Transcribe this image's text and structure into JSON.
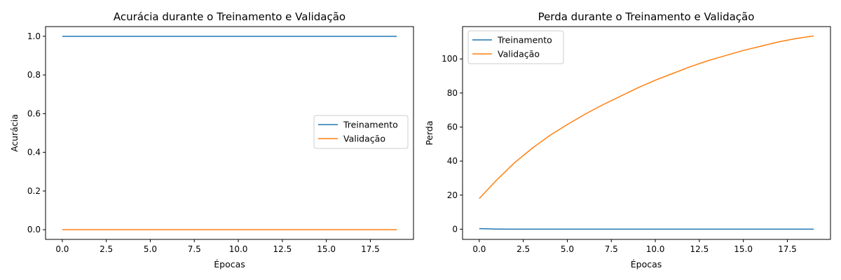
{
  "chart_data": [
    {
      "type": "line",
      "title": "Acurácia durante o Treinamento e Validação",
      "xlabel": "Épocas",
      "ylabel": "Acurácia",
      "xlim": [
        -0.95,
        19.95
      ],
      "ylim": [
        -0.05,
        1.05
      ],
      "xticks": [
        0.0,
        2.5,
        5.0,
        7.5,
        10.0,
        12.5,
        15.0,
        17.5
      ],
      "xtick_labels": [
        "0.0",
        "2.5",
        "5.0",
        "7.5",
        "10.0",
        "12.5",
        "15.0",
        "17.5"
      ],
      "yticks": [
        0.0,
        0.2,
        0.4,
        0.6,
        0.8,
        1.0
      ],
      "ytick_labels": [
        "0.0",
        "0.2",
        "0.4",
        "0.6",
        "0.8",
        "1.0"
      ],
      "legend_position": "center-right",
      "grid": false,
      "x": [
        0,
        1,
        2,
        3,
        4,
        5,
        6,
        7,
        8,
        9,
        10,
        11,
        12,
        13,
        14,
        15,
        16,
        17,
        18,
        19
      ],
      "series": [
        {
          "name": "Treinamento",
          "color": "#1f77b4",
          "values": [
            1,
            1,
            1,
            1,
            1,
            1,
            1,
            1,
            1,
            1,
            1,
            1,
            1,
            1,
            1,
            1,
            1,
            1,
            1,
            1
          ]
        },
        {
          "name": "Validação",
          "color": "#ff7f0e",
          "values": [
            0,
            0,
            0,
            0,
            0,
            0,
            0,
            0,
            0,
            0,
            0,
            0,
            0,
            0,
            0,
            0,
            0,
            0,
            0,
            0
          ]
        }
      ]
    },
    {
      "type": "line",
      "title": "Perda durante o Treinamento e Validação",
      "xlabel": "Épocas",
      "ylabel": "Perda",
      "xlim": [
        -0.95,
        19.95
      ],
      "ylim": [
        -6.0,
        119.0
      ],
      "xticks": [
        0.0,
        2.5,
        5.0,
        7.5,
        10.0,
        12.5,
        15.0,
        17.5
      ],
      "xtick_labels": [
        "0.0",
        "2.5",
        "5.0",
        "7.5",
        "10.0",
        "12.5",
        "15.0",
        "17.5"
      ],
      "yticks": [
        0,
        20,
        40,
        60,
        80,
        100
      ],
      "ytick_labels": [
        "0",
        "20",
        "40",
        "60",
        "80",
        "100"
      ],
      "legend_position": "upper-left",
      "grid": false,
      "x": [
        0,
        1,
        2,
        3,
        4,
        5,
        6,
        7,
        8,
        9,
        10,
        11,
        12,
        13,
        14,
        15,
        16,
        17,
        18,
        19
      ],
      "series": [
        {
          "name": "Treinamento",
          "color": "#1f77b4",
          "values": [
            0.3,
            0.05,
            0.02,
            0.02,
            0.02,
            0.02,
            0.02,
            0.02,
            0.02,
            0.02,
            0.02,
            0.02,
            0.02,
            0.02,
            0.02,
            0.02,
            0.02,
            0.02,
            0.02,
            0.02
          ]
        },
        {
          "name": "Validação",
          "color": "#ff7f0e",
          "values": [
            18,
            29,
            39,
            47.5,
            55,
            61.5,
            67.5,
            73,
            78,
            83,
            87.5,
            91.5,
            95.5,
            99,
            102,
            105,
            107.5,
            110,
            112,
            113.5
          ]
        }
      ]
    }
  ]
}
